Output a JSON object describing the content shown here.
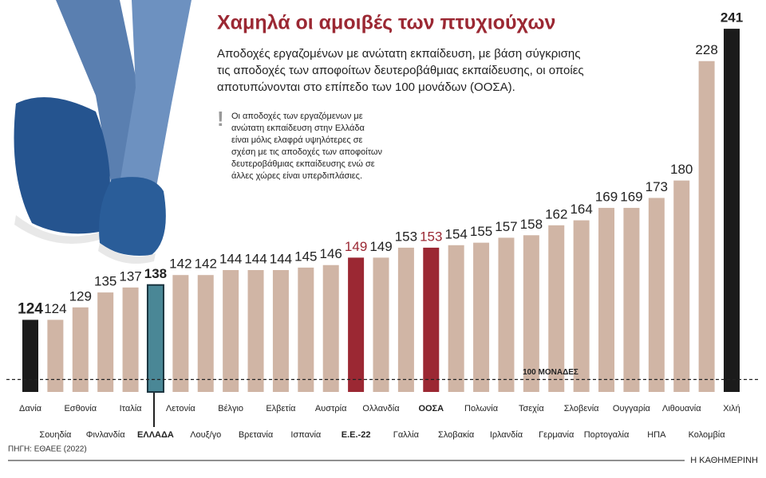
{
  "chart_data": {
    "type": "bar",
    "title": "Χαμηλά οι αμοιβές των πτυχιούχων",
    "subtitle": [
      "Αποδοχές εργαζομένων με ανώτατη εκπαίδευση, με βάση σύγκρισης",
      "τις αποδοχές των αποφοίτων δευτεροβάθμιας εκπαίδευσης, οι οποίες",
      "αποτυπώνονται στο επίπεδο των 100 μονάδων (ΟΟΣΑ)."
    ],
    "annotation": [
      "Οι αποδοχές των εργαζόμενων με",
      "ανώτατη εκπαίδευση στην Ελλάδα",
      "είναι μόλις ελαφρά υψηλότερες σε",
      "σχέση με τις αποδοχές των αποφοίτων",
      "δευτεροβάθμιας εκπαίδευσης ενώ σε",
      "άλλες χώρες είναι υπερδιπλάσιες."
    ],
    "categories": [
      "Δανία",
      "Σουηδία",
      "Εσθονία",
      "Φινλανδία",
      "Ιταλία",
      "ΕΛΛΑΔΑ",
      "Λετονία",
      "Λουξ/γο",
      "Βέλγιο",
      "Βρετανία",
      "Ελβετία",
      "Ισπανία",
      "Αυστρία",
      "Ε.Ε.-22",
      "Ολλανδία",
      "Γαλλία",
      "ΟΟΣΑ",
      "Σλοβακία",
      "Πολωνία",
      "Ιρλανδία",
      "Τσεχία",
      "Γερμανία",
      "Σλοβενία",
      "Πορτογαλία",
      "Ουγγαρία",
      "ΗΠΑ",
      "Λιθουανία",
      "Κολομβία",
      "Χιλή"
    ],
    "values": [
      124,
      124,
      129,
      135,
      137,
      138,
      142,
      142,
      144,
      144,
      144,
      145,
      146,
      149,
      149,
      153,
      153,
      154,
      155,
      157,
      158,
      162,
      164,
      169,
      169,
      173,
      180,
      228,
      241
    ],
    "color": "#d0b5a5",
    "colors": [
      "#1b1b1b",
      "#d0b5a5",
      "#d0b5a5",
      "#d0b5a5",
      "#d0b5a5",
      "#4a8796",
      "#d0b5a5",
      "#d0b5a5",
      "#d0b5a5",
      "#d0b5a5",
      "#d0b5a5",
      "#d0b5a5",
      "#d0b5a5",
      "#9b2833",
      "#d0b5a5",
      "#d0b5a5",
      "#9b2833",
      "#d0b5a5",
      "#d0b5a5",
      "#d0b5a5",
      "#d0b5a5",
      "#d0b5a5",
      "#d0b5a5",
      "#d0b5a5",
      "#d0b5a5",
      "#d0b5a5",
      "#d0b5a5",
      "#d0b5a5",
      "#1b1b1b"
    ],
    "ylim": [
      95,
      250
    ],
    "reference_line": {
      "value": 100,
      "label": "100 ΜΟΝΑΔΕΣ"
    },
    "source": "ΠΗΓΗ: ΕΘΑΕΕ (2022)",
    "brand": "Η ΚΑΘΗΜΕΡΙΝΗ"
  }
}
